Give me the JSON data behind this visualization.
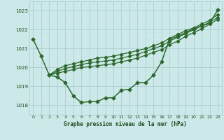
{
  "title": "Graphe pression niveau de la mer (hPa)",
  "background_color": "#cce8e8",
  "grid_color": "#aacfcf",
  "line_color": "#2d6a2d",
  "xlim": [
    -0.5,
    23.5
  ],
  "ylim": [
    1017.5,
    1023.5
  ],
  "yticks": [
    1018,
    1019,
    1020,
    1021,
    1022,
    1023
  ],
  "xticks": [
    0,
    1,
    2,
    3,
    4,
    5,
    6,
    7,
    8,
    9,
    10,
    11,
    12,
    13,
    14,
    15,
    16,
    17,
    18,
    19,
    20,
    21,
    22,
    23
  ],
  "series": [
    {
      "x": [
        0,
        1,
        2,
        3,
        4,
        5,
        6,
        7,
        8,
        9,
        10,
        11,
        12,
        13,
        14,
        15,
        16,
        17,
        18,
        19,
        20,
        21,
        22,
        23
      ],
      "y": [
        1021.5,
        1020.6,
        1019.6,
        1019.5,
        1019.2,
        1018.5,
        1018.15,
        1018.2,
        1018.2,
        1018.4,
        1018.4,
        1018.8,
        1018.85,
        1019.2,
        1019.2,
        1019.6,
        1020.3,
        1021.5,
        1021.65,
        1021.85,
        1022.05,
        1022.2,
        1022.35,
        1023.05
      ]
    },
    {
      "x": [
        2,
        3,
        4,
        5,
        6,
        7,
        8,
        9,
        10,
        11,
        12,
        13,
        14,
        15,
        16,
        17,
        18,
        19,
        20,
        21,
        22,
        23
      ],
      "y": [
        1019.6,
        1019.9,
        1020.1,
        1020.2,
        1020.3,
        1020.4,
        1020.5,
        1020.55,
        1020.6,
        1020.7,
        1020.8,
        1020.9,
        1021.0,
        1021.15,
        1021.3,
        1021.55,
        1021.75,
        1021.95,
        1022.1,
        1022.3,
        1022.5,
        1022.8
      ]
    },
    {
      "x": [
        2,
        3,
        4,
        5,
        6,
        7,
        8,
        9,
        10,
        11,
        12,
        13,
        14,
        15,
        16,
        17,
        18,
        19,
        20,
        21,
        22,
        23
      ],
      "y": [
        1019.6,
        1019.8,
        1019.95,
        1020.05,
        1020.15,
        1020.25,
        1020.3,
        1020.35,
        1020.4,
        1020.5,
        1020.6,
        1020.7,
        1020.85,
        1021.0,
        1021.15,
        1021.4,
        1021.6,
        1021.8,
        1022.0,
        1022.2,
        1022.4,
        1022.65
      ]
    },
    {
      "x": [
        2,
        3,
        4,
        5,
        6,
        7,
        8,
        9,
        10,
        11,
        12,
        13,
        14,
        15,
        16,
        17,
        18,
        19,
        20,
        21,
        22,
        23
      ],
      "y": [
        1019.6,
        1019.7,
        1019.8,
        1019.9,
        1020.0,
        1020.05,
        1020.1,
        1020.15,
        1020.2,
        1020.3,
        1020.4,
        1020.5,
        1020.65,
        1020.8,
        1020.95,
        1021.2,
        1021.4,
        1021.65,
        1021.85,
        1022.05,
        1022.3,
        1022.55
      ]
    }
  ]
}
